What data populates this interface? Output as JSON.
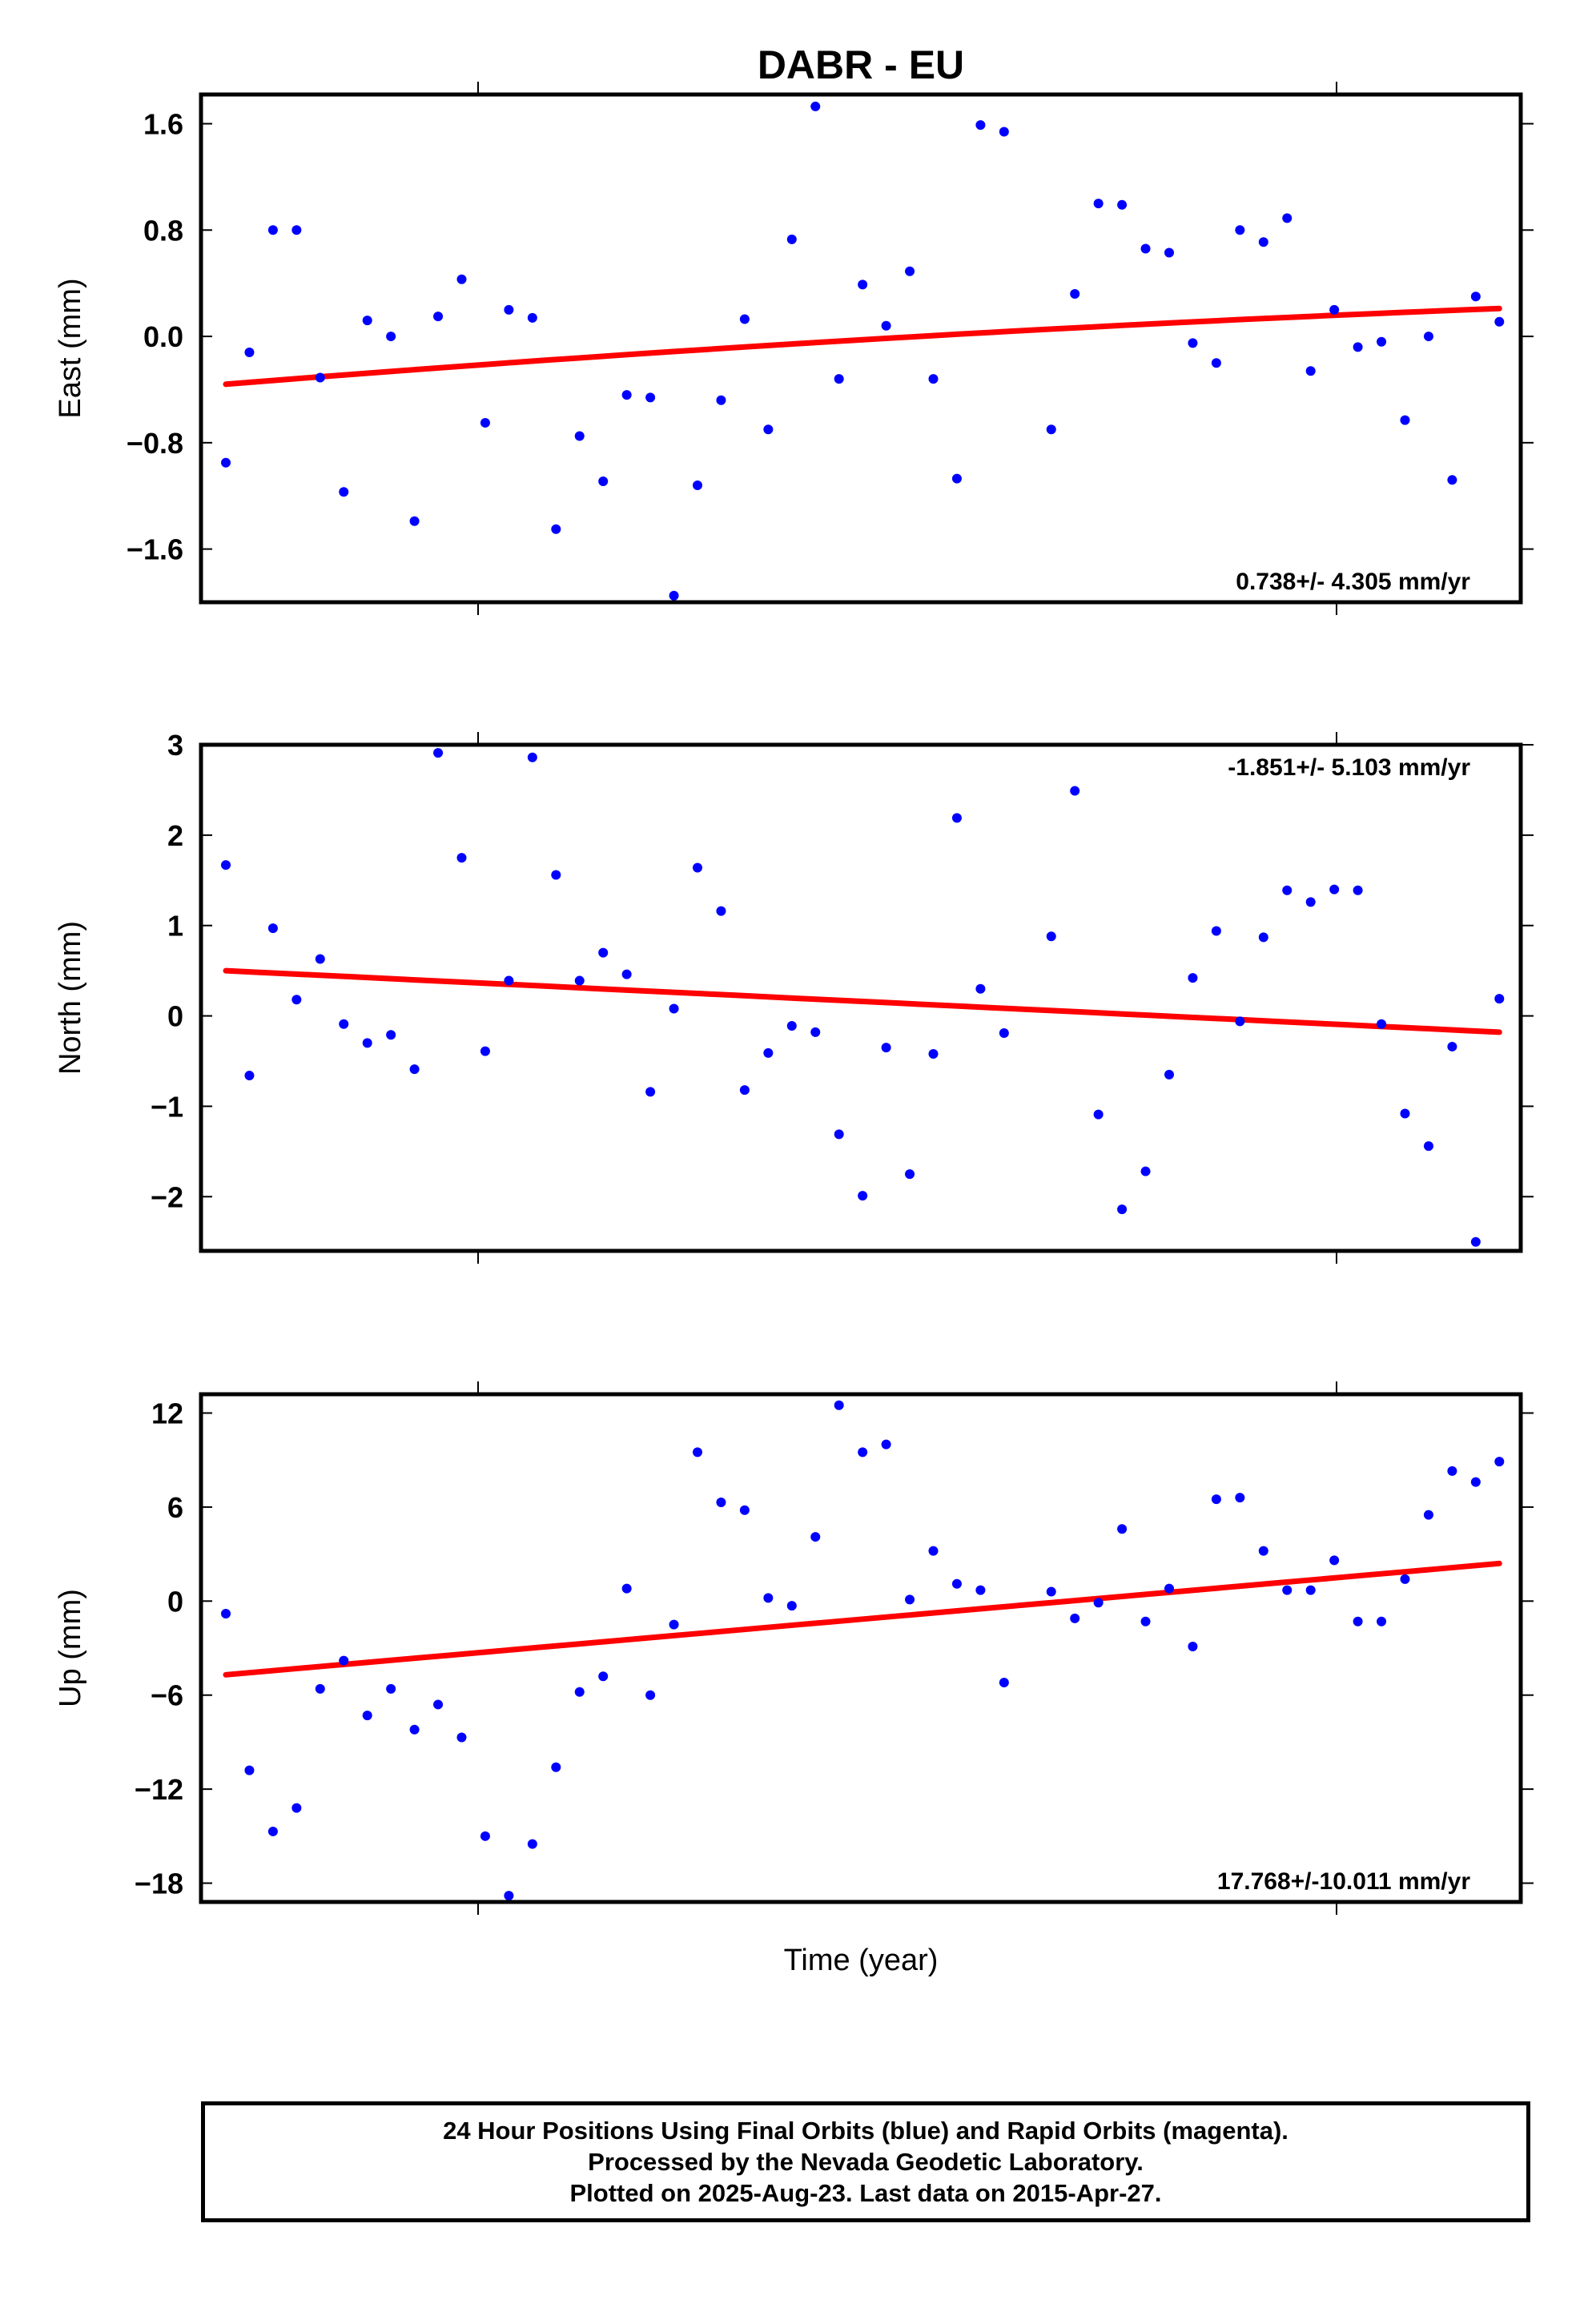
{
  "title": "DABR - EU",
  "xlabel": "Time (year)",
  "colors": {
    "final_orbits": "#0000ff",
    "trend": "#ff0000",
    "frame": "#000000"
  },
  "chart_data": [
    {
      "type": "scatter",
      "ylabel": "East (mm)",
      "ylim": [
        -2.0,
        1.82
      ],
      "yticks": [
        "1.6",
        "0.8",
        "0.0",
        "−0.8",
        "−1.6"
      ],
      "ytick_values": [
        1.6,
        0.8,
        0.0,
        -0.8,
        -1.6
      ],
      "rate_text": "0.738+/- 4.305 mm/yr",
      "rate_position": "bottom-right",
      "trend": {
        "y0": -0.36,
        "y1": 0.21,
        "curve": 0.05
      },
      "points": [
        -0.95,
        -0.12,
        0.8,
        0.8,
        -0.31,
        -1.17,
        0.12,
        0.0,
        -1.39,
        0.15,
        0.43,
        -0.65,
        0.2,
        0.14,
        -1.45,
        -0.75,
        -1.09,
        -0.44,
        -0.46,
        -1.95,
        -1.12,
        -0.48,
        0.13,
        -0.7,
        0.73,
        1.73,
        -0.32,
        0.39,
        0.08,
        0.49,
        -0.32,
        -1.07,
        1.59,
        1.54,
        null,
        -0.7,
        0.32,
        1.0,
        0.99,
        0.66,
        0.63,
        -0.05,
        -0.2,
        0.8,
        0.71,
        0.89,
        -0.26,
        0.2,
        -0.08,
        -0.04,
        -0.63,
        0.0,
        -1.08,
        0.3,
        0.11
      ]
    },
    {
      "type": "scatter",
      "ylabel": "North (mm)",
      "ylim": [
        -2.6,
        3.0
      ],
      "yticks": [
        "3",
        "2",
        "1",
        "0",
        "−1",
        "−2"
      ],
      "ytick_values": [
        3,
        2,
        1,
        0,
        -1,
        -2
      ],
      "rate_text": "-1.851+/- 5.103 mm/yr",
      "rate_position": "top-right",
      "trend": {
        "y0": 0.5,
        "y1": -0.18,
        "curve": 0
      },
      "points": [
        1.67,
        -0.66,
        0.97,
        0.18,
        0.63,
        -0.09,
        -0.3,
        -0.21,
        -0.59,
        2.91,
        1.75,
        -0.39,
        0.39,
        2.86,
        1.56,
        0.39,
        0.7,
        0.46,
        -0.84,
        0.08,
        1.64,
        1.16,
        -0.82,
        -0.41,
        -0.11,
        -0.18,
        -1.31,
        -1.99,
        -0.35,
        -1.75,
        -0.42,
        2.19,
        0.3,
        -0.19,
        null,
        0.88,
        2.49,
        -1.09,
        -2.14,
        -1.72,
        -0.65,
        0.42,
        0.94,
        -0.06,
        0.87,
        1.39,
        1.26,
        1.4,
        1.39,
        -0.09,
        -1.08,
        -1.44,
        -0.34,
        -2.5,
        0.19
      ]
    },
    {
      "type": "scatter",
      "ylabel": "Up (mm)",
      "ylim": [
        -19.2,
        13.2
      ],
      "yticks": [
        "12",
        "6",
        "0",
        "−6",
        "−12",
        "−18"
      ],
      "ytick_values": [
        12,
        6,
        0,
        -6,
        -12,
        -18
      ],
      "rate_text": "17.768+/-10.011 mm/yr",
      "rate_position": "bottom-right",
      "trend": {
        "y0": -4.7,
        "y1": 2.4,
        "curve": 0
      },
      "points": [
        -0.8,
        -10.8,
        -14.7,
        -13.2,
        -5.6,
        -3.8,
        -7.3,
        -5.6,
        -8.2,
        -6.6,
        -8.7,
        -15.0,
        -18.8,
        -15.5,
        -10.6,
        -5.8,
        -4.8,
        0.8,
        -6.0,
        -1.5,
        9.5,
        6.3,
        5.8,
        0.2,
        -0.3,
        4.1,
        12.5,
        9.5,
        10.0,
        0.1,
        3.2,
        1.1,
        0.7,
        -5.2,
        null,
        0.6,
        -1.1,
        -0.1,
        4.6,
        -1.3,
        0.8,
        -2.9,
        6.5,
        6.6,
        3.2,
        0.7,
        0.7,
        2.6,
        -1.3,
        -1.3,
        1.4,
        5.5,
        8.3,
        7.6,
        8.9
      ]
    }
  ],
  "caption": {
    "lines": [
      "24 Hour Positions Using Final Orbits (blue) and Rapid Orbits (magenta).",
      "Processed by the Nevada Geodetic Laboratory.",
      "Plotted on 2025-Aug-23. Last data on 2015-Apr-27."
    ]
  }
}
